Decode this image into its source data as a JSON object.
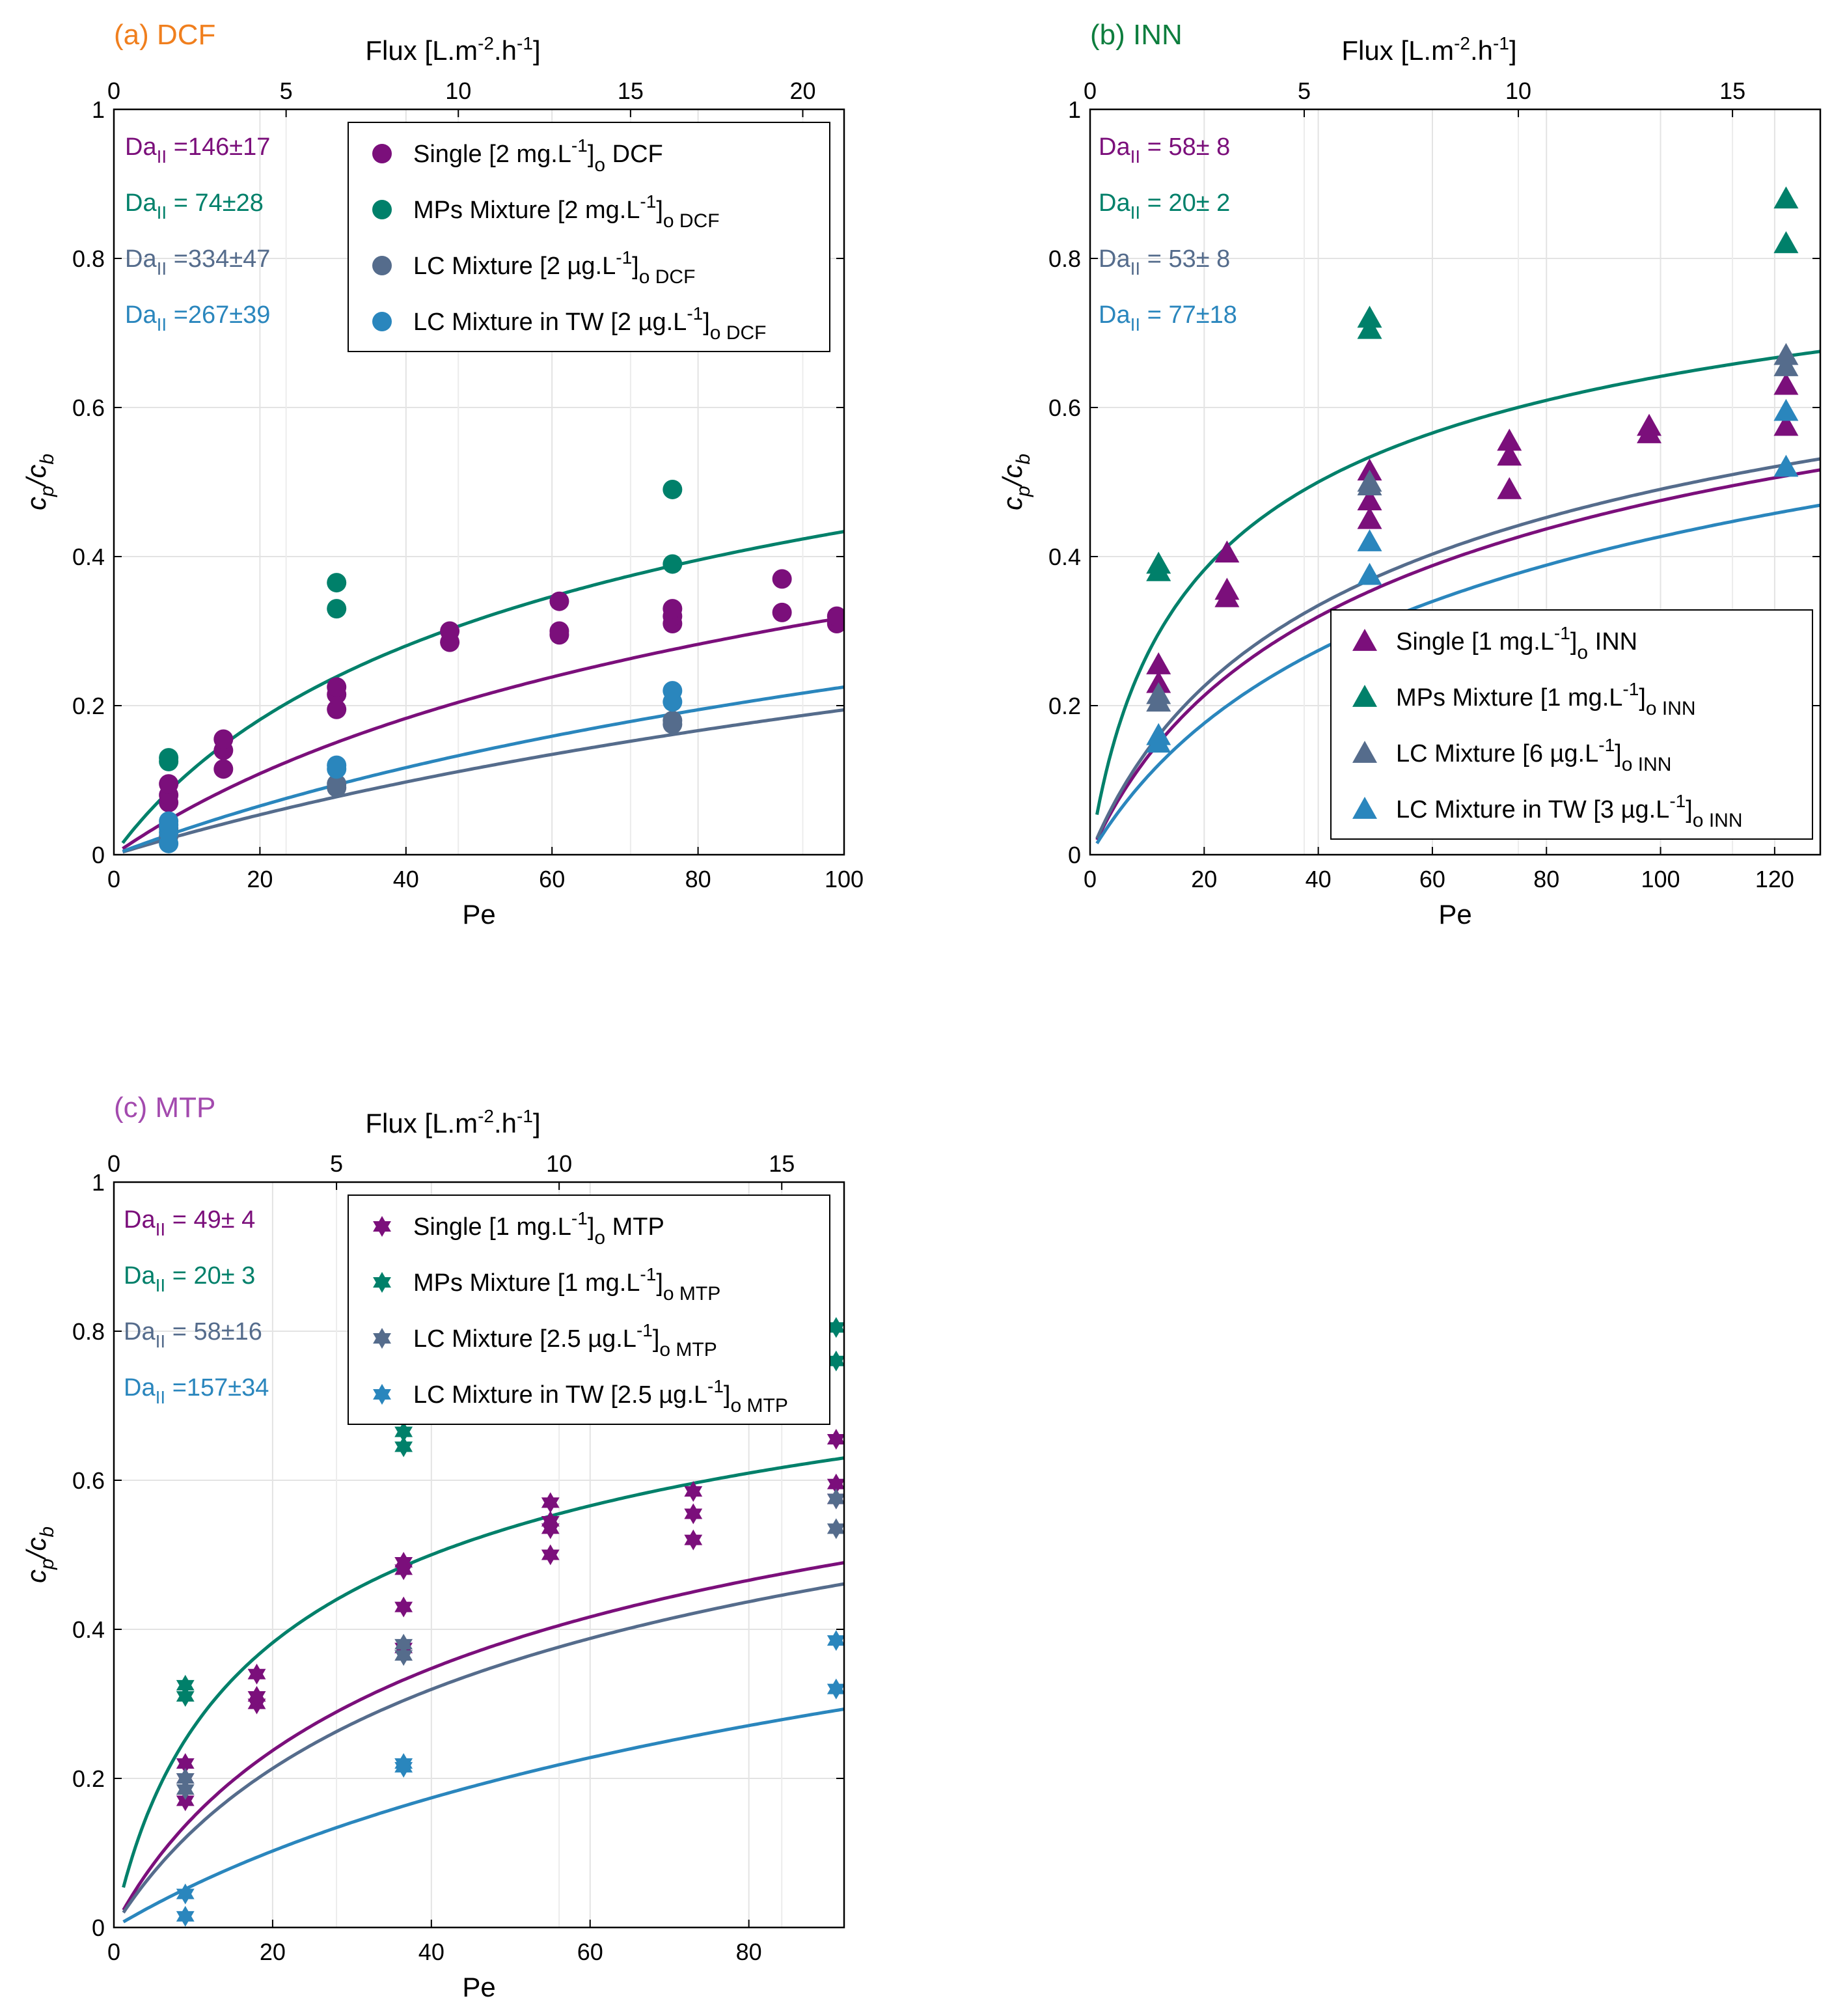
{
  "colors": {
    "single": "#7B0F7B",
    "mps": "#00806A",
    "lc": "#556C8C",
    "lctw": "#2A86BD",
    "label_dcf": "#F07F1E",
    "label_inn": "#0E7E3E",
    "label_mtp": "#A34AAE"
  },
  "chart_data": [
    {
      "type": "scatter",
      "panel": "(a) DCF",
      "xlabel": "Pe",
      "ylabel": "c_p/c_b",
      "x2label": "Flux [L.m^-2.h^-1]",
      "xlim": [
        0,
        100
      ],
      "ylim": [
        0,
        1
      ],
      "x2lim": [
        0,
        21.2
      ],
      "xticks": [
        0,
        20,
        40,
        60,
        80,
        100
      ],
      "yticks": [
        0,
        0.2,
        0.4,
        0.6,
        0.8,
        1
      ],
      "x2ticks": [
        0,
        5,
        10,
        15,
        20
      ],
      "marker": "circle",
      "grid": true,
      "legend_position": "top-right",
      "da_labels": [
        "146±17",
        " 74±28",
        "334±47",
        "267±39"
      ],
      "series": [
        {
          "key": "single",
          "legend": "Single [2 mg.L",
          "sub": "o",
          "tail": " DCF",
          "da": 146,
          "x": [
            7.5,
            7.5,
            7.5,
            15,
            15,
            15,
            30.5,
            30.5,
            30.5,
            46,
            46,
            61,
            61,
            61,
            76.5,
            76.5,
            76.5,
            91.5,
            91.5,
            99,
            99
          ],
          "y": [
            0.07,
            0.08,
            0.095,
            0.115,
            0.14,
            0.155,
            0.195,
            0.215,
            0.225,
            0.285,
            0.3,
            0.3,
            0.295,
            0.34,
            0.31,
            0.32,
            0.33,
            0.325,
            0.37,
            0.31,
            0.32
          ]
        },
        {
          "key": "mps",
          "legend": "MPs Mixture [2 mg.L",
          "sub": "o DCF",
          "tail": "",
          "da": 74,
          "x": [
            7.5,
            7.5,
            30.5,
            30.5,
            76.5,
            76.5
          ],
          "y": [
            0.125,
            0.13,
            0.33,
            0.365,
            0.39,
            0.49
          ]
        },
        {
          "key": "lc",
          "legend": "LC Mixture [2 µg.L",
          "sub": "o DCF",
          "tail": "",
          "da": 334,
          "x": [
            7.5,
            7.5,
            30.5,
            30.5,
            76.5,
            76.5
          ],
          "y": [
            0.025,
            0.035,
            0.09,
            0.095,
            0.175,
            0.18
          ]
        },
        {
          "key": "lctw",
          "legend": "LC Mixture in TW [2 µg.L",
          "sub": "o DCF",
          "tail": "",
          "da": 267,
          "x": [
            7.5,
            7.5,
            7.5,
            7.5,
            30.5,
            30.5,
            76.5,
            76.5
          ],
          "y": [
            0.015,
            0.03,
            0.04,
            0.045,
            0.115,
            0.12,
            0.205,
            0.22
          ]
        }
      ]
    },
    {
      "type": "scatter",
      "panel": "(b) INN",
      "xlabel": "Pe",
      "ylabel": "c_p/c_b",
      "x2label": "Flux [L.m^-2.h^-1]",
      "xlim": [
        0,
        128
      ],
      "ylim": [
        0,
        1
      ],
      "x2lim": [
        0,
        17.05
      ],
      "xticks": [
        0,
        20,
        40,
        60,
        80,
        100,
        120
      ],
      "yticks": [
        0,
        0.2,
        0.4,
        0.6,
        0.8,
        1
      ],
      "x2ticks": [
        0,
        5,
        10,
        15
      ],
      "marker": "triangle",
      "grid": true,
      "legend_position": "bottom-right",
      "da_labels": [
        " 58± 8",
        " 20± 2",
        " 53± 8",
        " 77±18"
      ],
      "series": [
        {
          "key": "single",
          "legend": "Single [1 mg.L",
          "sub": "o",
          "tail": " INN",
          "da": 58,
          "x": [
            12,
            12,
            24,
            24,
            24,
            49,
            49,
            49,
            73.5,
            73.5,
            73.5,
            98,
            98,
            122,
            122
          ],
          "y": [
            0.23,
            0.255,
            0.345,
            0.355,
            0.405,
            0.45,
            0.475,
            0.515,
            0.49,
            0.535,
            0.555,
            0.565,
            0.575,
            0.575,
            0.63
          ]
        },
        {
          "key": "mps",
          "legend": "MPs Mixture [1 mg.L",
          "sub": "o INN",
          "tail": "",
          "da": 20,
          "x": [
            12,
            12,
            49,
            49,
            122,
            122
          ],
          "y": [
            0.38,
            0.39,
            0.705,
            0.72,
            0.82,
            0.88
          ]
        },
        {
          "key": "lc",
          "legend": "LC Mixture [6 µg.L",
          "sub": "o INN",
          "tail": "",
          "da": 53,
          "x": [
            12,
            12,
            49,
            49,
            122,
            122
          ],
          "y": [
            0.205,
            0.215,
            0.495,
            0.5,
            0.655,
            0.67
          ]
        },
        {
          "key": "lctw",
          "legend": "LC Mixture in TW [3 µg.L",
          "sub": "o INN",
          "tail": "",
          "da": 77,
          "x": [
            12,
            12,
            49,
            49,
            122,
            122
          ],
          "y": [
            0.15,
            0.16,
            0.375,
            0.42,
            0.52,
            0.595
          ]
        }
      ]
    },
    {
      "type": "scatter",
      "panel": "(c) MTP",
      "xlabel": "Pe",
      "ylabel": "c_p/c_b",
      "x2label": "Flux [L.m^-2.h^-1]",
      "xlim": [
        0,
        92
      ],
      "ylim": [
        0,
        1
      ],
      "x2lim": [
        0,
        16.4
      ],
      "xticks": [
        0,
        20,
        40,
        60,
        80
      ],
      "yticks": [
        0,
        0.2,
        0.4,
        0.6,
        0.8,
        1
      ],
      "x2ticks": [
        0,
        5,
        10,
        15
      ],
      "marker": "star",
      "grid": true,
      "legend_position": "top-right",
      "da_labels": [
        " 49± 4",
        " 20± 3",
        " 58±16",
        "157±34"
      ],
      "series": [
        {
          "key": "single",
          "legend": "Single [1 mg.L",
          "sub": "o",
          "tail": " MTP",
          "da": 49,
          "x": [
            9,
            9,
            9,
            18,
            18,
            18,
            36.5,
            36.5,
            36.5,
            36.5,
            55,
            55,
            55,
            55,
            73,
            73,
            73,
            91,
            91,
            91
          ],
          "y": [
            0.17,
            0.2,
            0.22,
            0.3,
            0.31,
            0.34,
            0.375,
            0.43,
            0.48,
            0.49,
            0.5,
            0.535,
            0.545,
            0.57,
            0.52,
            0.555,
            0.585,
            0.575,
            0.595,
            0.655
          ]
        },
        {
          "key": "mps",
          "legend": "MPs Mixture [1 mg.L",
          "sub": "o MTP",
          "tail": "",
          "da": 20,
          "x": [
            9,
            9,
            36.5,
            36.5,
            91,
            91
          ],
          "y": [
            0.31,
            0.325,
            0.645,
            0.665,
            0.76,
            0.805
          ]
        },
        {
          "key": "lc",
          "legend": "LC Mixture [2.5 µg.L",
          "sub": "o MTP",
          "tail": "",
          "da": 58,
          "x": [
            9,
            9,
            36.5,
            36.5,
            91,
            91
          ],
          "y": [
            0.185,
            0.2,
            0.365,
            0.38,
            0.535,
            0.575
          ]
        },
        {
          "key": "lctw",
          "legend": "LC Mixture in TW [2.5 µg.L",
          "sub": "o MTP",
          "tail": "",
          "da": 157,
          "x": [
            9,
            9,
            36.5,
            36.5,
            91,
            91
          ],
          "y": [
            0.015,
            0.045,
            0.215,
            0.22,
            0.32,
            0.385
          ]
        }
      ]
    }
  ]
}
